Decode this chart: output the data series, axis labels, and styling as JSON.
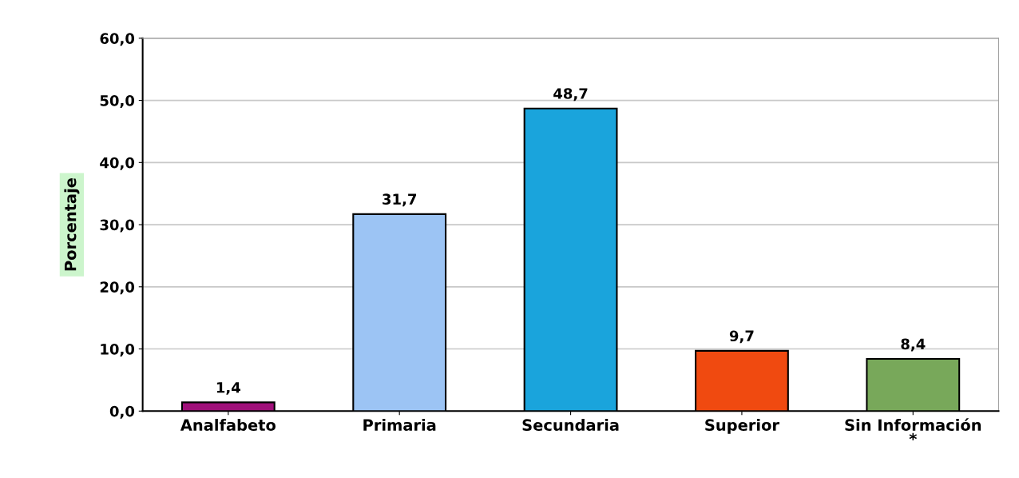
{
  "chart_data": {
    "type": "bar",
    "ylabel": "Porcentaje",
    "categories": [
      "Analfabeto",
      "Primaria",
      "Secundaria",
      "Superior",
      "Sin Información\n*"
    ],
    "values": [
      1.4,
      31.7,
      48.7,
      9.7,
      8.4
    ],
    "colors": [
      "#a0107a",
      "#9cc4f4",
      "#1aa4dc",
      "#f04a10",
      "#78a85a"
    ],
    "value_labels": [
      "1,4",
      "31,7",
      "48,7",
      "9,7",
      "8,4"
    ],
    "ylim": [
      0,
      60
    ],
    "yticks": [
      {
        "value": 0,
        "label": "0,0"
      },
      {
        "value": 10,
        "label": "10,0"
      },
      {
        "value": 20,
        "label": "20,0"
      },
      {
        "value": 30,
        "label": "30,0"
      },
      {
        "value": 40,
        "label": "40,0"
      },
      {
        "value": 50,
        "label": "50,0"
      },
      {
        "value": 60,
        "label": "60,0"
      }
    ],
    "grid": "y",
    "legend": false
  }
}
